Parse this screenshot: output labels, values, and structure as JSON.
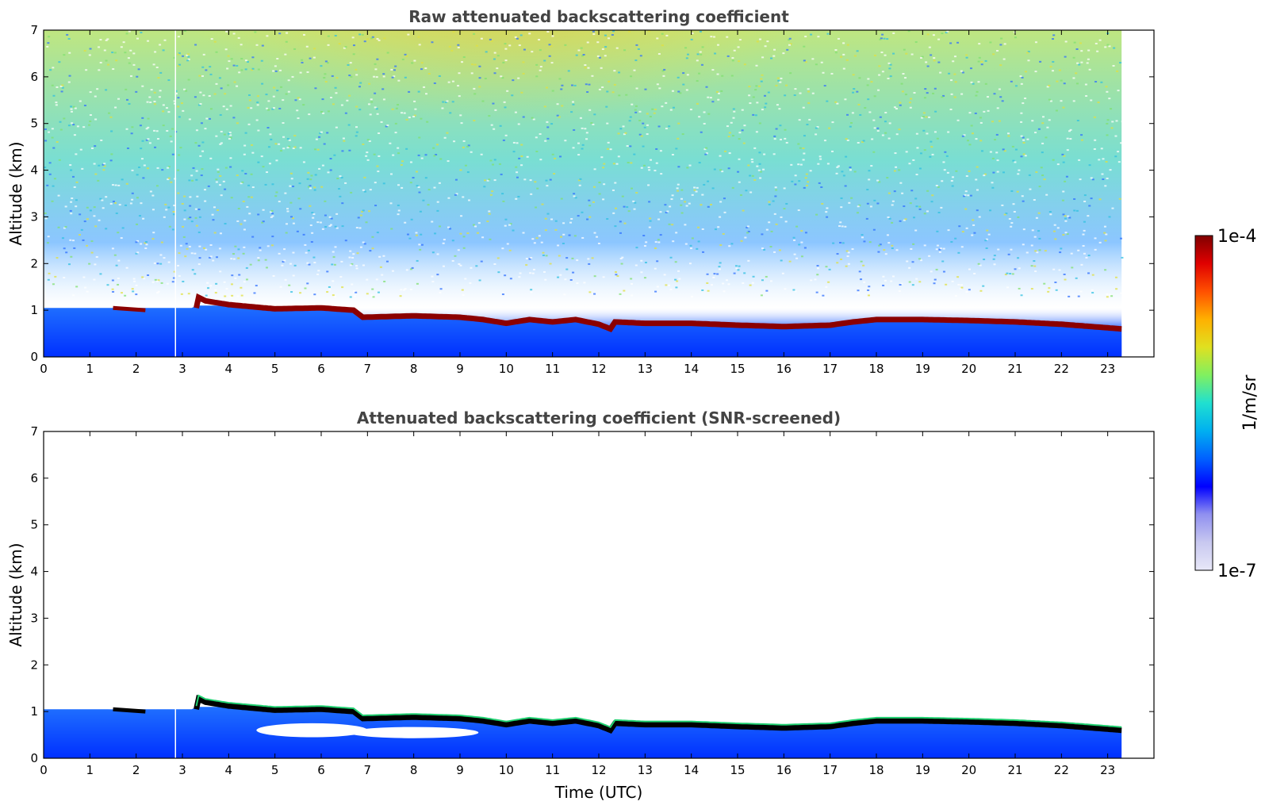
{
  "colors": {
    "clear_air": "#ffffff",
    "noise_low": "#0000ff",
    "noise_high": "#f0e040",
    "cloud": "#8b0000",
    "screened_line": "#000000",
    "title": "#444444"
  },
  "chart_data": [
    {
      "type": "heatmap",
      "title": "Raw attenuated backscattering coefficient",
      "xlabel": "",
      "ylabel": "Altitude (km)",
      "xlim": [
        0,
        24
      ],
      "ylim": [
        0,
        7
      ],
      "xticks": [
        "0",
        "1",
        "2",
        "3",
        "4",
        "5",
        "6",
        "7",
        "8",
        "9",
        "10",
        "11",
        "12",
        "13",
        "14",
        "15",
        "16",
        "17",
        "18",
        "19",
        "20",
        "21",
        "22",
        "23"
      ],
      "yticks": [
        "0",
        "1",
        "2",
        "3",
        "4",
        "5",
        "6",
        "7"
      ],
      "data_end_time": 23.3,
      "data_gap_time": 2.85,
      "cloud_base_km": [
        [
          3.3,
          1.3
        ],
        [
          3.5,
          1.2
        ],
        [
          4.0,
          1.12
        ],
        [
          5.0,
          1.03
        ],
        [
          6.0,
          1.05
        ],
        [
          6.7,
          1.0
        ],
        [
          6.9,
          0.85
        ],
        [
          8.0,
          0.88
        ],
        [
          9.0,
          0.85
        ],
        [
          9.5,
          0.8
        ],
        [
          10.0,
          0.72
        ],
        [
          10.5,
          0.8
        ],
        [
          11.0,
          0.75
        ],
        [
          11.5,
          0.8
        ],
        [
          12.0,
          0.7
        ],
        [
          12.25,
          0.6
        ],
        [
          12.35,
          0.75
        ],
        [
          13.0,
          0.72
        ],
        [
          14.0,
          0.72
        ],
        [
          15.0,
          0.68
        ],
        [
          16.0,
          0.65
        ],
        [
          17.0,
          0.68
        ],
        [
          17.5,
          0.75
        ],
        [
          18.0,
          0.8
        ],
        [
          19.0,
          0.8
        ],
        [
          20.0,
          0.78
        ],
        [
          21.0,
          0.75
        ],
        [
          22.0,
          0.7
        ],
        [
          23.3,
          0.6
        ]
      ],
      "early_cloud_km": [
        [
          1.5,
          1.05
        ],
        [
          2.2,
          1.0
        ]
      ]
    },
    {
      "type": "heatmap",
      "title": "Attenuated backscattering coefficient (SNR-screened)",
      "xlabel": "Time (UTC)",
      "ylabel": "Altitude (km)",
      "xlim": [
        0,
        24
      ],
      "ylim": [
        0,
        7
      ],
      "xticks": [
        "0",
        "1",
        "2",
        "3",
        "4",
        "5",
        "6",
        "7",
        "8",
        "9",
        "10",
        "11",
        "12",
        "13",
        "14",
        "15",
        "16",
        "17",
        "18",
        "19",
        "20",
        "21",
        "22",
        "23"
      ],
      "yticks": [
        "0",
        "1",
        "2",
        "3",
        "4",
        "5",
        "6",
        "7"
      ],
      "data_end_time": 23.3,
      "data_gap_time": 2.85
    }
  ],
  "colorbar": {
    "max_label": "1e-4",
    "min_label": "1e-7",
    "label": "1/m/sr",
    "stops": [
      "#e8e8f8",
      "#c8c8f0",
      "#9090f0",
      "#0000ff",
      "#0060ff",
      "#00b0f0",
      "#20e0d0",
      "#80f060",
      "#e0e020",
      "#ffb000",
      "#ff5000",
      "#e00000",
      "#800000"
    ]
  }
}
